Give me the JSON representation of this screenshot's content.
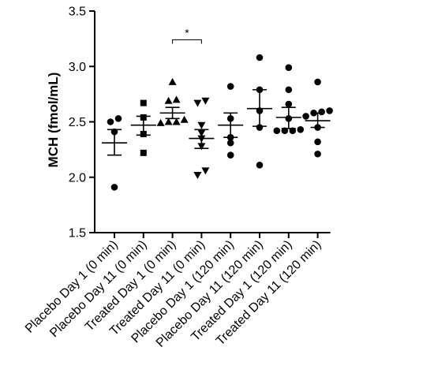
{
  "chart_data": {
    "type": "scatter",
    "ylabel": "MCH (fmol/mL)",
    "xlabel": "",
    "ylim": [
      1.5,
      3.5
    ],
    "yticks": [
      "1.5",
      "2.0",
      "2.5",
      "3.0",
      "3.5"
    ],
    "grid": false,
    "categories": [
      "Placebo Day 1 (0 min)",
      "Placebo Day 11 (0 min)",
      "Treated Day 1 (0 min)",
      "Treated Day 11 (0 min)",
      "Placebo Day 1 (120 min)",
      "Placebo Day 11 (120 min)",
      "Treated Day 1 (120 min)",
      "Treated Day 11 (120 min)"
    ],
    "series": [
      {
        "marker": "circle",
        "points": [
          2.53,
          2.5,
          2.41,
          1.91
        ],
        "mean": 2.31,
        "sem_low": 2.2,
        "sem_high": 2.43
      },
      {
        "marker": "square",
        "points": [
          2.67,
          2.54,
          2.39,
          2.22
        ],
        "mean": 2.47,
        "sem_low": 2.38,
        "sem_high": 2.55
      },
      {
        "marker": "triangle-up",
        "points": [
          2.86,
          2.7,
          2.69,
          2.52,
          2.5,
          2.5,
          2.49
        ],
        "mean": 2.58,
        "sem_low": 2.53,
        "sem_high": 2.63
      },
      {
        "marker": "triangle-down",
        "points": [
          2.69,
          2.67,
          2.47,
          2.4,
          2.35,
          2.28,
          2.06,
          2.02
        ],
        "mean": 2.35,
        "sem_low": 2.26,
        "sem_high": 2.43
      },
      {
        "marker": "circle",
        "points": [
          2.82,
          2.53,
          2.36,
          2.31,
          2.2
        ],
        "mean": 2.47,
        "sem_low": 2.36,
        "sem_high": 2.58
      },
      {
        "marker": "circle",
        "points": [
          3.08,
          2.79,
          2.6,
          2.45,
          2.11
        ],
        "mean": 2.62,
        "sem_low": 2.46,
        "sem_high": 2.79
      },
      {
        "marker": "circle",
        "points": [
          2.99,
          2.79,
          2.66,
          2.53,
          2.43,
          2.42,
          2.42,
          2.42
        ],
        "mean": 2.54,
        "sem_low": 2.44,
        "sem_high": 2.63
      },
      {
        "marker": "circle",
        "points": [
          2.86,
          2.6,
          2.59,
          2.58,
          2.55,
          2.45,
          2.32,
          2.21
        ],
        "mean": 2.51,
        "sem_low": 2.45,
        "sem_high": 2.58
      }
    ],
    "significance": [
      {
        "from": 2,
        "to": 3,
        "y": 3.24,
        "label": "*"
      }
    ]
  }
}
